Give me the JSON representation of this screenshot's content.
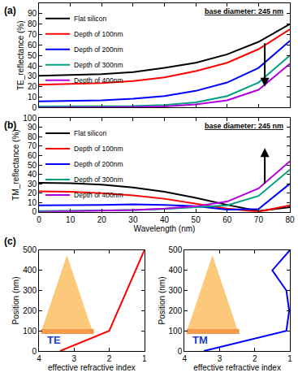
{
  "chart_data": [
    {
      "type": "line",
      "label": "(a)",
      "annotation": "base diameter: 245 nm",
      "ylabel": "TE_reflectance (%)",
      "tick_labels": "y",
      "legend": "top left",
      "x": [
        0,
        10,
        20,
        30,
        40,
        50,
        60,
        70,
        80
      ],
      "xlim": [
        0,
        80
      ],
      "xticks": [
        0,
        10,
        20,
        30,
        40,
        50,
        60,
        70,
        80
      ],
      "ylim": [
        0,
        100
      ],
      "yticks": [
        0,
        10,
        20,
        30,
        40,
        50,
        60,
        70,
        80,
        90,
        100
      ],
      "series": [
        {
          "name": "Flat silicon",
          "color": "#000000",
          "values": [
            30.5,
            31,
            32,
            34,
            38,
            43,
            51,
            63,
            80
          ]
        },
        {
          "name": "Depth of 100nm",
          "color": "#ff0000",
          "values": [
            22,
            22.5,
            23.5,
            25.5,
            29,
            35,
            43,
            56,
            75
          ]
        },
        {
          "name": "Depth of 200nm",
          "color": "#0000ff",
          "values": [
            6,
            6.5,
            7,
            8.5,
            11,
            16,
            24,
            38,
            64
          ]
        },
        {
          "name": "Depth of 300nm",
          "color": "#00a080",
          "values": [
            1,
            1,
            1.2,
            1.5,
            2.5,
            5,
            11,
            24,
            50
          ]
        },
        {
          "name": "Depth of 400nm",
          "color": "#b000e0",
          "values": [
            0,
            0,
            0.2,
            0.5,
            1,
            3,
            7,
            17,
            42
          ]
        }
      ]
    },
    {
      "type": "line",
      "label": "(b)",
      "annotation": "base diameter: 245 nm",
      "xlabel": "Wavelength (nm)",
      "ylabel": "TM_reflectance (%)",
      "legend": "top left",
      "x": [
        0,
        10,
        20,
        30,
        40,
        50,
        60,
        70,
        80
      ],
      "xlim": [
        0,
        80
      ],
      "xticks": [
        0,
        10,
        20,
        30,
        40,
        50,
        60,
        70,
        80
      ],
      "ylim": [
        0,
        100
      ],
      "yticks": [
        0,
        10,
        20,
        30,
        40,
        50,
        60,
        70,
        80,
        90,
        100
      ],
      "series": [
        {
          "name": "Flat silicon",
          "color": "#000000",
          "values": [
            31,
            30.5,
            29,
            26,
            21.5,
            15,
            7.5,
            1,
            5
          ]
        },
        {
          "name": "Depth of 100nm",
          "color": "#ff0000",
          "values": [
            22,
            21.5,
            20,
            17.5,
            14,
            9,
            3.5,
            0.2,
            7
          ]
        },
        {
          "name": "Depth of 200nm",
          "color": "#0000ff",
          "values": [
            7,
            7,
            7.5,
            8,
            7.5,
            6,
            2.5,
            3,
            30
          ]
        },
        {
          "name": "Depth of 300nm",
          "color": "#00a080",
          "values": [
            1,
            1,
            1.5,
            2,
            3,
            5,
            7,
            17,
            45
          ]
        },
        {
          "name": "Depth of 400nm",
          "color": "#b000e0",
          "values": [
            0,
            0.5,
            1,
            2,
            3.5,
            6,
            11,
            25,
            54
          ]
        }
      ]
    },
    {
      "type": "line",
      "label": "(c)",
      "annotation": "TE",
      "xlabel": "effective refractive index",
      "ylabel": "Position (nm)",
      "xlim": [
        4,
        1
      ],
      "xticks": [
        4,
        3,
        2,
        1
      ],
      "ylim": [
        0,
        500
      ],
      "yticks": [
        0,
        100,
        200,
        300,
        400,
        500
      ],
      "series": [
        {
          "color": "#ff0000",
          "x": [
            3.4,
            2,
            1
          ],
          "values": [
            0,
            100,
            500
          ]
        }
      ]
    },
    {
      "type": "line",
      "annotation": "TM",
      "xlabel": "effective refractive index",
      "ylabel": "Position (nm)",
      "xlim": [
        4,
        1
      ],
      "xticks": [
        4,
        3,
        2,
        1
      ],
      "ylim": [
        0,
        500
      ],
      "yticks": [
        0,
        100,
        200,
        300,
        400,
        500
      ],
      "series": [
        {
          "color": "#0000ff",
          "x": [
            3.45,
            1.1,
            1.02,
            1.1,
            1.5,
            1
          ],
          "values": [
            0,
            100,
            200,
            300,
            400,
            500
          ]
        }
      ]
    }
  ]
}
